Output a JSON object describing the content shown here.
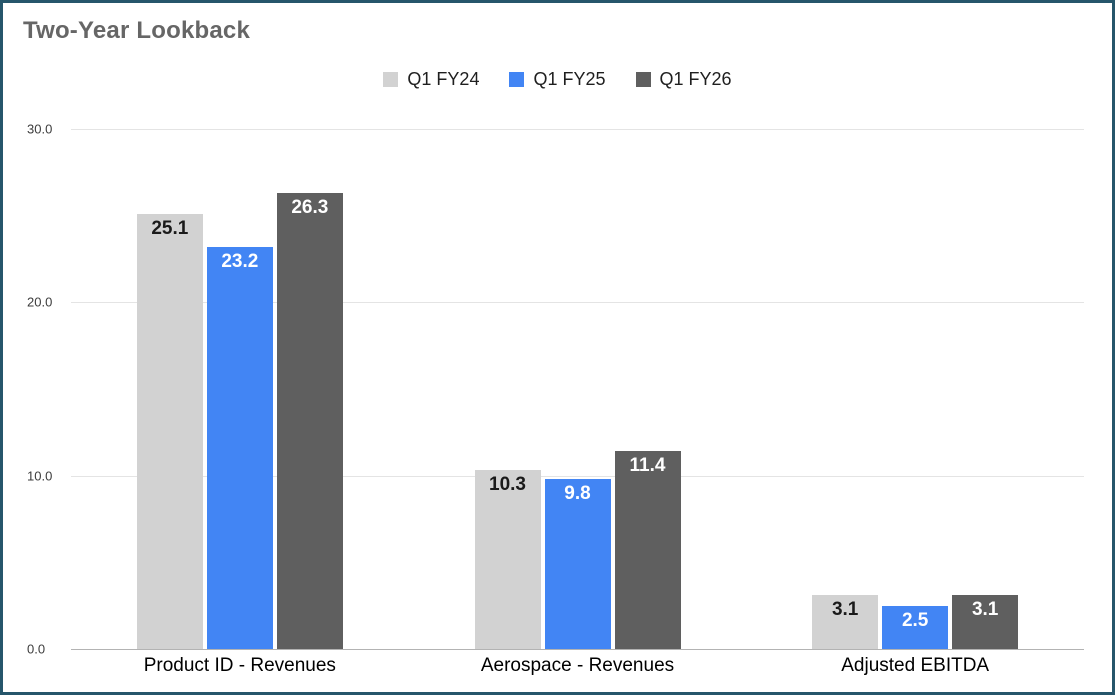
{
  "title": "Two-Year Lookback",
  "colors": {
    "frame_border": "#26566b",
    "title_text": "#666666",
    "gridline": "#e4e4e4",
    "baseline": "#b3b3b3",
    "series_fy24": "#d2d2d2",
    "series_fy25": "#4285f4",
    "series_fy26": "#5f5f5f"
  },
  "chart_data": {
    "type": "bar",
    "title": "Two-Year Lookback",
    "xlabel": "",
    "ylabel": "",
    "ylim": [
      0,
      30
    ],
    "yticks": [
      0,
      10,
      20,
      30
    ],
    "ytick_labels": [
      "0.0",
      "10.0",
      "20.0",
      "30.0"
    ],
    "grid": true,
    "legend_position": "top-center",
    "categories": [
      "Product ID - Revenues",
      "Aerospace - Revenues",
      "Adjusted EBITDA"
    ],
    "series": [
      {
        "name": "Q1 FY24",
        "color": "#d2d2d2",
        "label_color": "#1a1a1a",
        "values": [
          25.1,
          10.3,
          3.1
        ]
      },
      {
        "name": "Q1 FY25",
        "color": "#4285f4",
        "label_color": "#ffffff",
        "values": [
          23.2,
          9.8,
          2.5
        ]
      },
      {
        "name": "Q1 FY26",
        "color": "#5f5f5f",
        "label_color": "#ffffff",
        "values": [
          26.3,
          11.4,
          3.1
        ]
      }
    ]
  }
}
